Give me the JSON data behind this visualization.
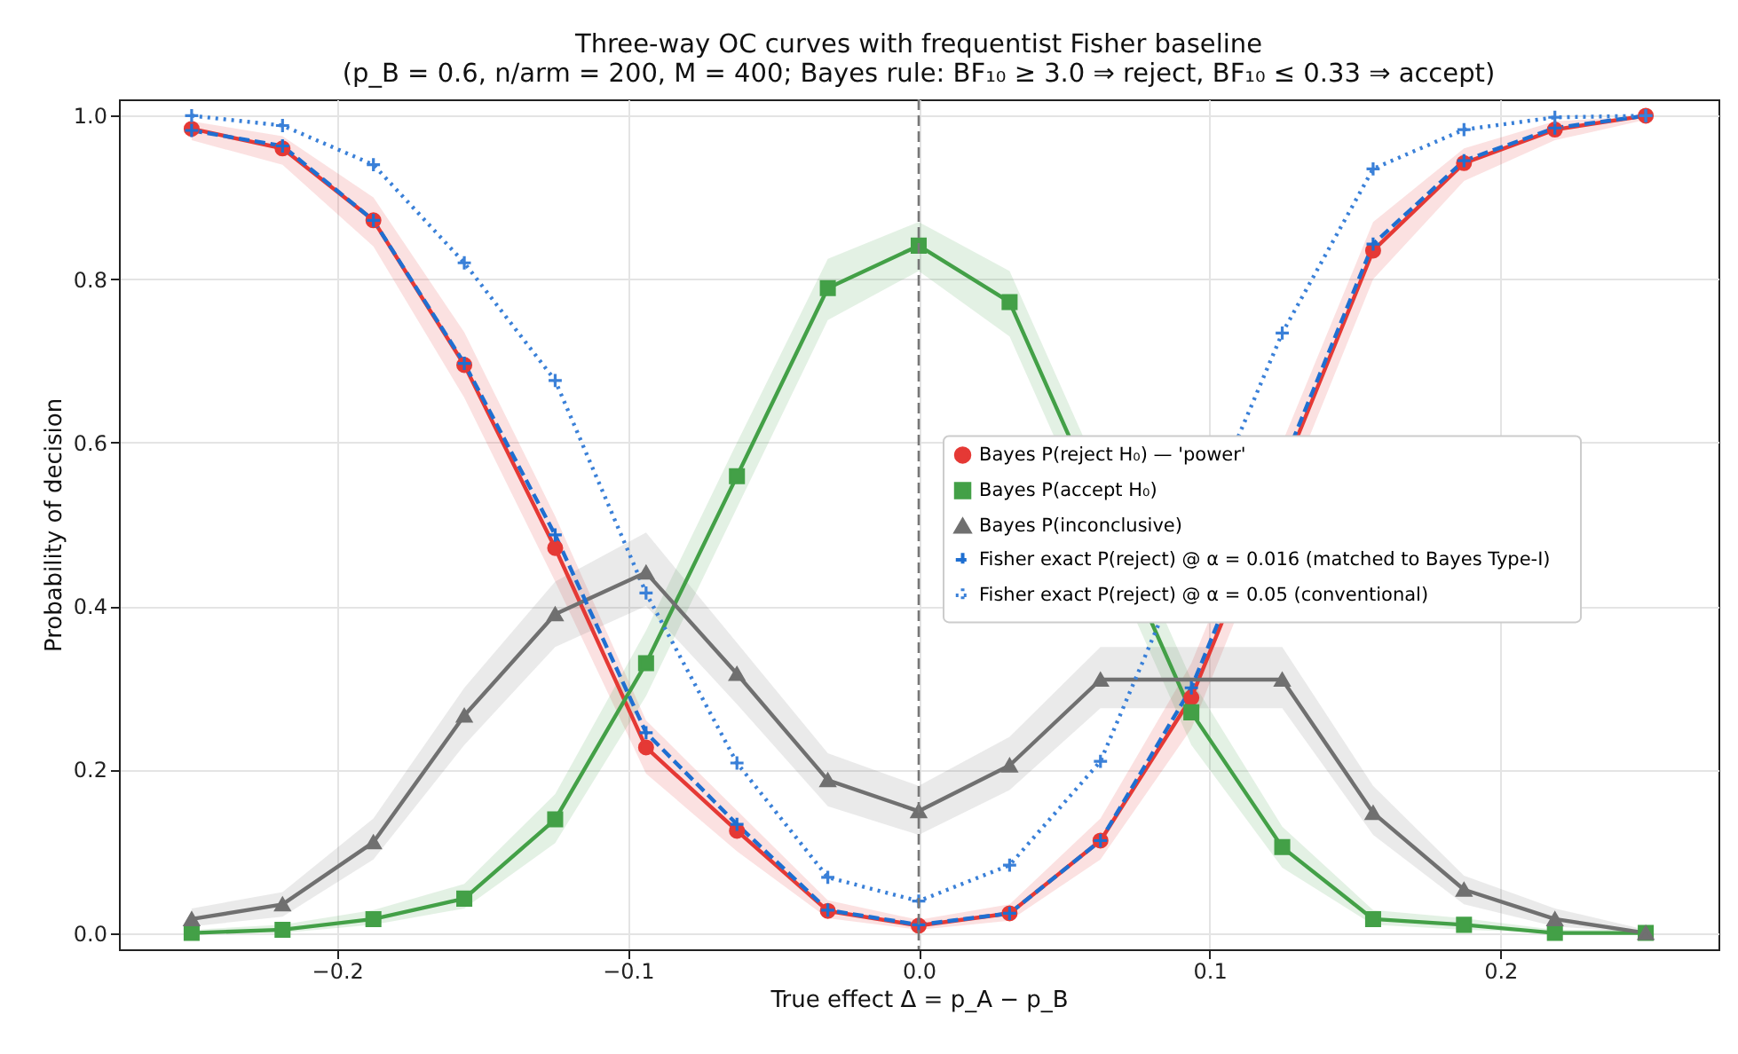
{
  "chart_data": {
    "type": "line",
    "title": "Three-way OC curves with frequentist Fisher baseline\n(p_B = 0.6, n/arm = 200, M = 400;  Bayes rule: BF₁₀ ≥ 3.0 ⇒ reject, BF₁₀ ≤ 0.33 ⇒ accept)",
    "xlabel": "True effect  Δ = p_A − p_B",
    "ylabel": "Probability of decision",
    "x": [
      -0.25,
      -0.21875,
      -0.1875,
      -0.15625,
      -0.125,
      -0.09375,
      -0.0625,
      -0.03125,
      0,
      0.03125,
      0.0625,
      0.09375,
      0.125,
      0.15625,
      0.1875,
      0.21875,
      0.25
    ],
    "series": [
      {
        "name": "Bayes  P(reject H₀)  —  'power'",
        "color": "#e53935",
        "marker": "circle",
        "line_style": "solid",
        "values": [
          0.984,
          0.96,
          0.872,
          0.695,
          0.471,
          0.227,
          0.125,
          0.027,
          0.009,
          0.024,
          0.113,
          0.288,
          null,
          0.835,
          0.942,
          0.983,
          1.0
        ],
        "lower": [
          0.97,
          0.94,
          0.84,
          0.655,
          0.43,
          0.195,
          0.1,
          0.018,
          0.004,
          0.015,
          0.09,
          0.25,
          null,
          0.8,
          0.92,
          0.97,
          0.995
        ],
        "upper": [
          0.993,
          0.975,
          0.9,
          0.735,
          0.51,
          0.26,
          0.15,
          0.04,
          0.016,
          0.035,
          0.14,
          0.33,
          null,
          0.87,
          0.96,
          0.993,
          1.0
        ]
      },
      {
        "name": "Bayes  P(accept H₀)",
        "color": "#43a047",
        "marker": "square",
        "line_style": "solid",
        "values": [
          0,
          0.004,
          0.017,
          0.042,
          0.139,
          0.33,
          0.559,
          0.789,
          0.841,
          0.772,
          null,
          0.27,
          0.105,
          0.017,
          0.01,
          0,
          0
        ],
        "lower": [
          0,
          0,
          0.01,
          0.03,
          0.11,
          0.29,
          0.52,
          0.75,
          0.81,
          0.73,
          null,
          0.23,
          0.08,
          0.01,
          0.004,
          0,
          0
        ],
        "upper": [
          0.004,
          0.01,
          0.028,
          0.06,
          0.17,
          0.37,
          0.6,
          0.825,
          0.87,
          0.81,
          null,
          0.31,
          0.13,
          0.028,
          0.018,
          0.004,
          0.004
        ]
      },
      {
        "name": "Bayes  P(inconclusive)",
        "color": "#707070",
        "marker": "triangle",
        "line_style": "solid",
        "values": [
          0.017,
          0.035,
          0.111,
          0.266,
          0.39,
          0.441,
          0.317,
          0.187,
          0.149,
          0.205,
          0.31,
          null,
          0.31,
          0.147,
          0.053,
          0.017,
          0
        ],
        "lower": [
          0.008,
          0.02,
          0.09,
          0.23,
          0.35,
          0.4,
          0.28,
          0.155,
          0.12,
          0.175,
          0.275,
          null,
          0.275,
          0.12,
          0.035,
          0.008,
          0
        ],
        "upper": [
          0.03,
          0.05,
          0.14,
          0.3,
          0.43,
          0.49,
          0.355,
          0.22,
          0.18,
          0.24,
          0.35,
          null,
          0.35,
          0.18,
          0.07,
          0.03,
          0.004
        ]
      },
      {
        "name": "Fisher exact  P(reject)  @ α = 0.016  (matched to Bayes Type-I)",
        "color": "#1f6fd1",
        "marker": "cross",
        "line_style": "dashed",
        "values": [
          0.982,
          0.963,
          0.872,
          0.697,
          0.487,
          0.245,
          0.133,
          0.028,
          0.01,
          0.024,
          0.113,
          0.3,
          null,
          0.843,
          0.945,
          0.985,
          1.0
        ]
      },
      {
        "name": "Fisher exact  P(reject)  @ α = 0.05  (conventional)",
        "color": "#3a80d8",
        "marker": "cross",
        "line_style": "dotted",
        "values": [
          1.0,
          0.988,
          0.94,
          0.82,
          0.676,
          0.416,
          0.208,
          0.068,
          0.039,
          0.083,
          0.21,
          null,
          0.734,
          0.935,
          0.983,
          0.998,
          1.0
        ]
      }
    ],
    "xlim": [
      -0.275,
      0.275
    ],
    "xticks": [
      {
        "value": -0.2,
        "label": "−0.2"
      },
      {
        "value": -0.1,
        "label": "−0.1"
      },
      {
        "value": 0,
        "label": "0.0"
      },
      0.1,
      0.2
    ],
    "ylim": [
      -0.02,
      1.02
    ],
    "yticks": [
      {
        "value": 0,
        "label": "0.0"
      },
      0.2,
      0.4,
      0.6,
      0.8,
      {
        "value": 1,
        "label": "1.0"
      }
    ],
    "ref_lines": [
      {
        "axis": "x",
        "value": 0,
        "color": "#777777",
        "line_style": "dashed"
      }
    ],
    "grid": true,
    "legend": "right"
  }
}
